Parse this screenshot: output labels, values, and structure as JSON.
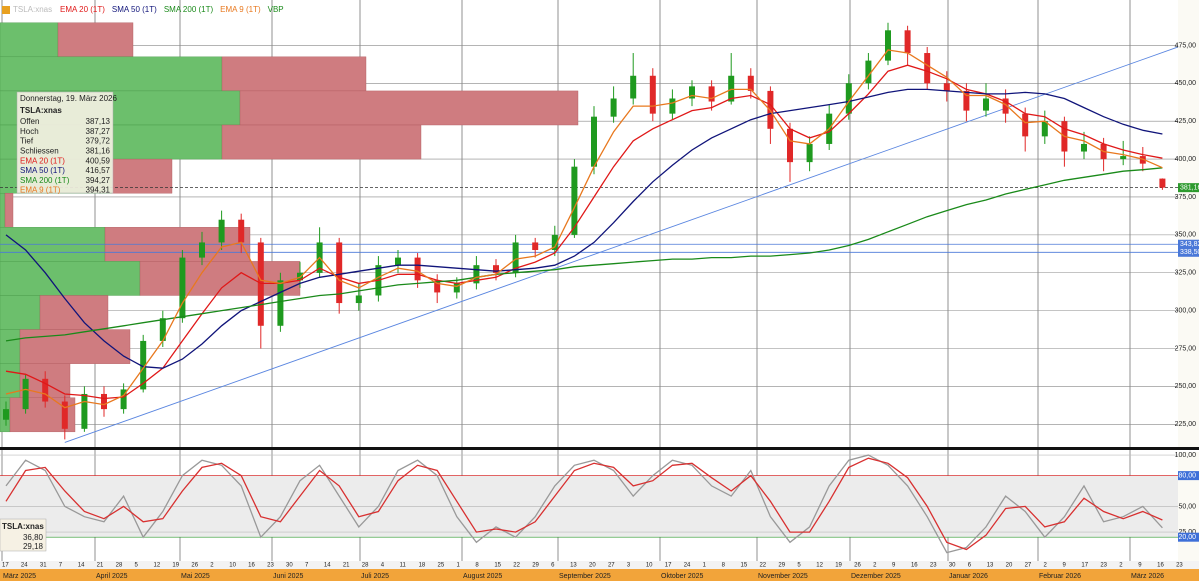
{
  "legend": {
    "symbol": "TSLA:xnas"
  },
  "tooltip": {
    "date": "Donnerstag, 19. März 2026",
    "symbol": "TSLA:xnas",
    "rows": [
      {
        "label": "Offen",
        "value": "387,13"
      },
      {
        "label": "Hoch",
        "value": "387,27"
      },
      {
        "label": "Tief",
        "value": "379,72"
      },
      {
        "label": "Schliessen",
        "value": "381,16"
      }
    ],
    "ma_values": [
      "400,59",
      "416,57",
      "394,27",
      "394,31"
    ]
  },
  "x_axis": {
    "days": [
      "17",
      "24",
      "31",
      "7",
      "14",
      "21",
      "28",
      "5",
      "12",
      "19",
      "26",
      "2",
      "10",
      "16",
      "23",
      "30",
      "7",
      "14",
      "21",
      "28",
      "4",
      "11",
      "18",
      "25",
      "1",
      "8",
      "15",
      "22",
      "29",
      "6",
      "13",
      "20",
      "27",
      "3",
      "10",
      "17",
      "24",
      "1",
      "8",
      "15",
      "22",
      "29",
      "5",
      "12",
      "19",
      "26",
      "2",
      "9",
      "16",
      "23",
      "30",
      "6",
      "13",
      "20",
      "27",
      "2",
      "9",
      "17",
      "23",
      "2",
      "9",
      "16",
      "23"
    ],
    "months": [
      "März 2025",
      "April 2025",
      "Mai 2025",
      "Juni 2025",
      "Juli 2025",
      "August 2025",
      "September 2025",
      "Oktober 2025",
      "November 2025",
      "Dezember 2025",
      "Januar 2026",
      "Februar 2026",
      "März 2026"
    ]
  },
  "chart_data": [
    {
      "type": "candlestick",
      "up_color": "#1f9a1f",
      "down_color": "#e02828",
      "ylim": [
        210,
        505
      ],
      "yticks": [
        {
          "value": 225,
          "label": "225,00"
        },
        {
          "value": 250,
          "label": "250,00"
        },
        {
          "value": 275,
          "label": "275,00"
        },
        {
          "value": 300,
          "label": "300,00"
        },
        {
          "value": 325,
          "label": "325,00"
        },
        {
          "value": 350,
          "label": "350,00"
        },
        {
          "value": 375,
          "label": "375,00"
        },
        {
          "value": 400,
          "label": "400,00"
        },
        {
          "value": 425,
          "label": "425,00"
        },
        {
          "value": 450,
          "label": "450,00"
        },
        {
          "value": 475,
          "label": "475,00"
        }
      ],
      "ohlc": [
        [
          228,
          240,
          224,
          235
        ],
        [
          235,
          258,
          232,
          255
        ],
        [
          255,
          260,
          236,
          240
        ],
        [
          240,
          244,
          215,
          222
        ],
        [
          222,
          250,
          220,
          245
        ],
        [
          245,
          250,
          230,
          235
        ],
        [
          235,
          252,
          232,
          248
        ],
        [
          248,
          284,
          246,
          280
        ],
        [
          280,
          300,
          276,
          295
        ],
        [
          295,
          340,
          292,
          335
        ],
        [
          335,
          352,
          330,
          345
        ],
        [
          345,
          366,
          340,
          360
        ],
        [
          360,
          364,
          338,
          345
        ],
        [
          345,
          348,
          275,
          290
        ],
        [
          290,
          325,
          286,
          320
        ],
        [
          320,
          332,
          315,
          325
        ],
        [
          325,
          355,
          322,
          345
        ],
        [
          345,
          348,
          298,
          305
        ],
        [
          305,
          318,
          300,
          310
        ],
        [
          310,
          336,
          306,
          330
        ],
        [
          330,
          340,
          325,
          335
        ],
        [
          335,
          338,
          315,
          320
        ],
        [
          320,
          324,
          305,
          312
        ],
        [
          312,
          322,
          308,
          318
        ],
        [
          318,
          336,
          314,
          330
        ],
        [
          330,
          334,
          320,
          325
        ],
        [
          325,
          350,
          322,
          345
        ],
        [
          345,
          348,
          335,
          340
        ],
        [
          340,
          356,
          336,
          350
        ],
        [
          350,
          400,
          348,
          395
        ],
        [
          395,
          435,
          390,
          428
        ],
        [
          428,
          448,
          424,
          440
        ],
        [
          440,
          470,
          436,
          455
        ],
        [
          455,
          460,
          425,
          430
        ],
        [
          430,
          446,
          426,
          440
        ],
        [
          440,
          452,
          435,
          448
        ],
        [
          448,
          452,
          432,
          438
        ],
        [
          438,
          470,
          436,
          455
        ],
        [
          455,
          460,
          440,
          445
        ],
        [
          445,
          448,
          410,
          420
        ],
        [
          420,
          424,
          385,
          398
        ],
        [
          398,
          415,
          392,
          410
        ],
        [
          410,
          436,
          406,
          430
        ],
        [
          430,
          456,
          426,
          450
        ],
        [
          450,
          470,
          446,
          465
        ],
        [
          465,
          490,
          462,
          485
        ],
        [
          485,
          488,
          462,
          470
        ],
        [
          470,
          474,
          446,
          450
        ],
        [
          450,
          458,
          438,
          445
        ],
        [
          445,
          450,
          425,
          432
        ],
        [
          432,
          450,
          428,
          440
        ],
        [
          440,
          446,
          424,
          430
        ],
        [
          430,
          434,
          405,
          415
        ],
        [
          415,
          432,
          410,
          425
        ],
        [
          425,
          428,
          395,
          405
        ],
        [
          405,
          418,
          400,
          410
        ],
        [
          410,
          414,
          392,
          400
        ],
        [
          400,
          412,
          396,
          402
        ],
        [
          402,
          408,
          392,
          397
        ],
        [
          387.13,
          387.27,
          379.72,
          381.16
        ]
      ],
      "series": [
        {
          "name": "EMA 20 (1T)",
          "color": "#e01818",
          "values": [
            260,
            258,
            252,
            245,
            244,
            242,
            243,
            252,
            262,
            280,
            298,
            315,
            325,
            318,
            318,
            320,
            328,
            322,
            318,
            320,
            324,
            324,
            320,
            318,
            320,
            322,
            328,
            332,
            338,
            355,
            375,
            395,
            412,
            420,
            426,
            432,
            434,
            440,
            442,
            436,
            420,
            414,
            418,
            430,
            443,
            458,
            462,
            458,
            453,
            446,
            443,
            438,
            430,
            428,
            420,
            416,
            410,
            406,
            403,
            400.59
          ]
        },
        {
          "name": "SMA 50 (1T)",
          "color": "#10147a",
          "values": [
            350,
            340,
            325,
            308,
            292,
            280,
            270,
            263,
            262,
            268,
            278,
            290,
            300,
            306,
            312,
            318,
            322,
            324,
            326,
            328,
            330,
            330,
            329,
            328,
            327,
            326,
            327,
            328,
            330,
            336,
            345,
            358,
            372,
            385,
            396,
            406,
            414,
            420,
            426,
            430,
            432,
            434,
            436,
            438,
            441,
            444,
            446,
            446,
            445,
            444,
            443,
            443,
            444,
            443,
            440,
            434,
            428,
            423,
            419,
            416.57
          ]
        },
        {
          "name": "SMA 200 (1T)",
          "color": "#1a8a1a",
          "values": [
            280,
            282,
            283,
            284,
            286,
            288,
            290,
            292,
            294,
            296,
            298,
            300,
            302,
            304,
            306,
            308,
            310,
            311,
            313,
            315,
            317,
            318,
            319,
            320,
            322,
            324,
            325,
            326,
            327,
            329,
            330,
            331,
            332,
            333,
            334,
            334,
            335,
            335,
            336,
            336,
            337,
            338,
            340,
            343,
            347,
            352,
            357,
            362,
            366,
            370,
            373,
            377,
            380,
            383,
            386,
            388,
            390,
            392,
            393,
            394.27
          ]
        },
        {
          "name": "EMA 9 (1T)",
          "color": "#e8781e",
          "values": [
            245,
            248,
            245,
            236,
            240,
            238,
            244,
            262,
            280,
            305,
            325,
            342,
            345,
            320,
            318,
            322,
            335,
            320,
            315,
            322,
            328,
            326,
            318,
            316,
            322,
            324,
            334,
            336,
            342,
            368,
            395,
            418,
            435,
            435,
            437,
            442,
            440,
            446,
            446,
            432,
            412,
            410,
            420,
            438,
            455,
            472,
            470,
            462,
            454,
            442,
            442,
            436,
            424,
            425,
            415,
            412,
            405,
            403,
            400,
            394.31
          ]
        }
      ],
      "volume_profile": {
        "name": "VBP",
        "color": "#1a8a1a",
        "up_color": "#6cbf6c",
        "down_color": "#cf7c80",
        "bins": [
          490,
          467.5,
          445,
          422.5,
          400,
          377.5,
          355,
          332.5,
          310,
          287.5,
          265,
          242.5,
          220
        ],
        "up": [
          58,
          222,
          240,
          222,
          112,
          5,
          105,
          140,
          40,
          20,
          20,
          10
        ],
        "down": [
          75,
          144,
          338,
          199,
          60,
          8,
          145,
          160,
          68,
          110,
          50,
          65
        ]
      },
      "levels": [
        {
          "value": 381.16,
          "label": "381,16",
          "color": "#2e9a2e"
        },
        {
          "value": 343.82,
          "label": "343,82",
          "color": "#4a78d8"
        },
        {
          "value": 338.5,
          "label": "338,50",
          "color": "#4a78d8"
        }
      ],
      "trendline": {
        "x": [
          3,
          59.8
        ],
        "y": [
          213,
          474
        ],
        "color": "#5a86e0"
      }
    },
    {
      "type": "line",
      "ylim": [
        -10,
        103
      ],
      "yticks": [
        {
          "value": 100,
          "label": "100,00"
        },
        {
          "value": 80,
          "label": "80,00"
        },
        {
          "value": 50,
          "label": "50,00"
        },
        {
          "value": 25,
          "label": "25,00"
        },
        {
          "value": 20,
          "label": "20,00"
        }
      ],
      "series": [
        {
          "color": "#999999",
          "values": [
            70,
            95,
            85,
            50,
            40,
            35,
            60,
            20,
            45,
            80,
            95,
            90,
            70,
            20,
            40,
            75,
            90,
            60,
            30,
            50,
            85,
            95,
            80,
            40,
            15,
            30,
            20,
            40,
            70,
            90,
            95,
            85,
            60,
            80,
            95,
            90,
            70,
            60,
            85,
            40,
            15,
            30,
            70,
            95,
            100,
            90,
            70,
            40,
            5,
            10,
            30,
            60,
            45,
            20,
            40,
            70,
            35,
            40,
            50,
            29.18
          ]
        },
        {
          "color": "#d83030",
          "values": [
            55,
            85,
            88,
            65,
            45,
            38,
            50,
            35,
            38,
            65,
            88,
            92,
            80,
            40,
            35,
            60,
            85,
            70,
            40,
            45,
            75,
            90,
            85,
            55,
            25,
            28,
            25,
            35,
            60,
            85,
            92,
            88,
            70,
            75,
            90,
            92,
            78,
            65,
            80,
            55,
            25,
            25,
            55,
            88,
            97,
            92,
            78,
            50,
            15,
            8,
            22,
            48,
            50,
            30,
            35,
            58,
            45,
            38,
            45,
            36.8
          ]
        }
      ],
      "box": {
        "symbol": "TSLA:xnas",
        "values": [
          "36,80",
          "29,18"
        ]
      }
    }
  ]
}
